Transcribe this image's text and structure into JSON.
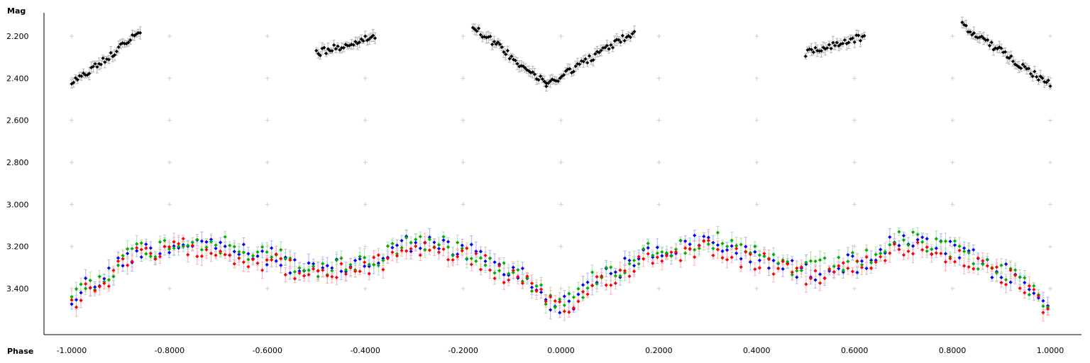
{
  "chart_data": {
    "type": "scatter",
    "title": "",
    "xlabel": "Phase",
    "ylabel": "Mag",
    "xlim": [
      -1.06,
      1.06
    ],
    "ylim": [
      3.62,
      2.12
    ],
    "y_inverted": true,
    "x_ticks": [
      -1.0,
      -0.8,
      -0.6,
      -0.4,
      -0.2,
      0.0,
      0.2,
      0.4,
      0.6,
      0.8,
      1.0
    ],
    "x_tick_labels": [
      "-1.0000",
      "-0.8000",
      "-0.6000",
      "-0.4000",
      "-0.2000",
      "0.0000",
      "0.2000",
      "0.4000",
      "0.6000",
      "0.8000",
      "1.0000"
    ],
    "y_ticks": [
      2.2,
      2.4,
      2.6,
      2.8,
      3.0,
      3.2,
      3.4
    ],
    "y_tick_labels": [
      "2.200",
      "2.400",
      "2.600",
      "2.800",
      "3.000",
      "3.200",
      "3.400"
    ],
    "grid": "plus-markers",
    "error_bars": true,
    "series": [
      {
        "color": "#000000",
        "errbar_color": "#b4b4b4",
        "segments": [
          {
            "x0": -1.0,
            "x1": -0.86,
            "y0": 2.43,
            "y1": 2.18
          },
          {
            "x0": -0.5,
            "x1": -0.38,
            "y0": 2.28,
            "y1": 2.2
          },
          {
            "x0": -0.18,
            "x1": -0.03,
            "y0": 2.15,
            "y1": 2.43
          },
          {
            "x0": -0.03,
            "x1": 0.15,
            "y0": 2.43,
            "y1": 2.18
          },
          {
            "x0": 0.5,
            "x1": 0.62,
            "y0": 2.28,
            "y1": 2.2
          },
          {
            "x0": 0.82,
            "x1": 1.0,
            "y0": 2.15,
            "y1": 2.43
          }
        ]
      },
      {
        "color": "#0000ff",
        "errbar_color": "#b0b0ff",
        "profile": [
          [
            -1.0,
            3.46
          ],
          [
            -0.97,
            3.38
          ],
          [
            -0.85,
            3.22
          ],
          [
            -0.75,
            3.18
          ],
          [
            -0.6,
            3.25
          ],
          [
            -0.5,
            3.32
          ],
          [
            -0.4,
            3.28
          ],
          [
            -0.3,
            3.18
          ],
          [
            -0.2,
            3.22
          ],
          [
            -0.1,
            3.32
          ],
          [
            0.0,
            3.48
          ],
          [
            0.1,
            3.32
          ],
          [
            0.2,
            3.22
          ],
          [
            0.3,
            3.18
          ],
          [
            0.4,
            3.25
          ],
          [
            0.5,
            3.32
          ],
          [
            0.6,
            3.28
          ],
          [
            0.7,
            3.18
          ],
          [
            0.8,
            3.22
          ],
          [
            0.9,
            3.32
          ],
          [
            1.0,
            3.46
          ]
        ]
      },
      {
        "color": "#00b000",
        "errbar_color": "#b0e0b0",
        "profile": [
          [
            -1.0,
            3.46
          ],
          [
            -0.97,
            3.38
          ],
          [
            -0.85,
            3.22
          ],
          [
            -0.75,
            3.18
          ],
          [
            -0.6,
            3.25
          ],
          [
            -0.5,
            3.32
          ],
          [
            -0.4,
            3.28
          ],
          [
            -0.3,
            3.18
          ],
          [
            -0.2,
            3.22
          ],
          [
            -0.1,
            3.32
          ],
          [
            0.0,
            3.48
          ],
          [
            0.1,
            3.32
          ],
          [
            0.2,
            3.22
          ],
          [
            0.3,
            3.18
          ],
          [
            0.4,
            3.25
          ],
          [
            0.5,
            3.32
          ],
          [
            0.6,
            3.28
          ],
          [
            0.7,
            3.18
          ],
          [
            0.8,
            3.22
          ],
          [
            0.9,
            3.32
          ],
          [
            1.0,
            3.46
          ]
        ]
      },
      {
        "color": "#ff0000",
        "errbar_color": "#ffb0b0",
        "profile": [
          [
            -1.0,
            3.46
          ],
          [
            -0.97,
            3.38
          ],
          [
            -0.85,
            3.22
          ],
          [
            -0.75,
            3.18
          ],
          [
            -0.6,
            3.25
          ],
          [
            -0.5,
            3.32
          ],
          [
            -0.4,
            3.28
          ],
          [
            -0.3,
            3.18
          ],
          [
            -0.2,
            3.22
          ],
          [
            -0.1,
            3.32
          ],
          [
            0.0,
            3.48
          ],
          [
            0.1,
            3.32
          ],
          [
            0.2,
            3.22
          ],
          [
            0.3,
            3.18
          ],
          [
            0.4,
            3.25
          ],
          [
            0.5,
            3.32
          ],
          [
            0.6,
            3.28
          ],
          [
            0.7,
            3.18
          ],
          [
            0.8,
            3.22
          ],
          [
            0.9,
            3.32
          ],
          [
            1.0,
            3.46
          ]
        ]
      }
    ]
  }
}
